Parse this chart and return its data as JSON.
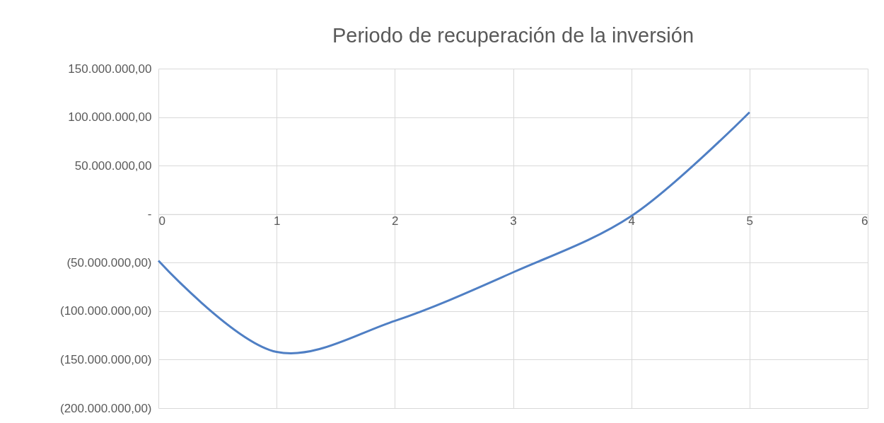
{
  "chart_data": {
    "type": "line",
    "title": "Periodo de recuperación de la inversión",
    "x": [
      0,
      1,
      2,
      3,
      4,
      5
    ],
    "series": [
      {
        "color": "#4f7fc4",
        "values": [
          -48000000,
          -142000000,
          -110000000,
          -60000000,
          -2000000,
          105000000
        ]
      }
    ],
    "xlim": [
      0,
      6
    ],
    "xticks": [
      0,
      1,
      2,
      3,
      4,
      5,
      6
    ],
    "ylim": [
      -200000000,
      150000000
    ],
    "yticks": [
      {
        "value": 150000000,
        "label": "150.000.000,00"
      },
      {
        "value": 100000000,
        "label": "100.000.000,00"
      },
      {
        "value": 50000000,
        "label": "50.000.000,00"
      },
      {
        "value": 0,
        "label": "-"
      },
      {
        "value": -50000000,
        "label": "(50.000.000,00)"
      },
      {
        "value": -100000000,
        "label": "(100.000.000,00)"
      },
      {
        "value": -150000000,
        "label": "(150.000.000,00)"
      },
      {
        "value": -200000000,
        "label": "(200.000.000,00)"
      }
    ],
    "grid": true,
    "marker": "none",
    "line_style": "solid"
  }
}
